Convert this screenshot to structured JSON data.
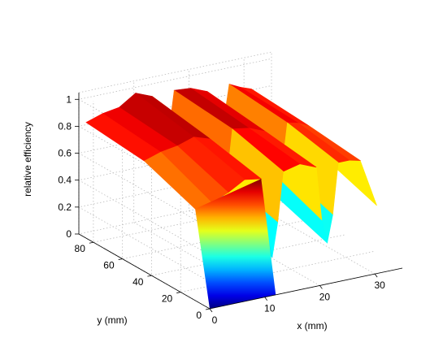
{
  "chart_data": {
    "type": "surface",
    "zlabel": "relative efficiency",
    "xlabel": "x (mm)",
    "ylabel": "y (mm)",
    "x_ticks": [
      "0",
      "10",
      "20",
      "30"
    ],
    "y_ticks": [
      "0",
      "20",
      "40",
      "60",
      "80"
    ],
    "z_ticks": [
      "0",
      "0.2",
      "0.4",
      "0.6",
      "0.8",
      "1"
    ],
    "xlim": [
      0,
      35
    ],
    "ylim": [
      0,
      90
    ],
    "zlim": [
      0,
      1.05
    ],
    "grid": true,
    "colormap": "jet",
    "x": [
      0,
      3,
      6,
      9,
      12,
      13,
      14,
      15,
      16,
      19,
      22,
      23,
      24,
      25,
      26,
      28,
      30,
      33
    ],
    "ridges": [
      {
        "y": 10,
        "z": [
          0.68,
          0.7,
          0.75,
          0.82,
          0.8,
          0.4,
          0.2,
          0.45,
          0.82,
          0.85,
          0.8,
          0.4,
          0.22,
          0.42,
          0.8,
          0.8,
          0.78,
          0.42
        ]
      },
      {
        "y": 45,
        "z": [
          0.82,
          0.86,
          0.88,
          0.92,
          0.88,
          0.5,
          0.3,
          0.55,
          0.92,
          0.9,
          0.85,
          0.55,
          0.35,
          0.55,
          0.88,
          0.86,
          0.82,
          0.55
        ]
      },
      {
        "y": 85,
        "z": [
          0.86,
          0.9,
          0.92,
          1.0,
          0.95,
          0.6,
          0.4,
          0.65,
          0.96,
          0.95,
          0.9,
          0.65,
          0.45,
          0.65,
          0.92,
          0.88,
          0.85,
          0.62
        ]
      }
    ],
    "front_face": {
      "y": 0,
      "z": [
        0,
        1
      ]
    }
  }
}
